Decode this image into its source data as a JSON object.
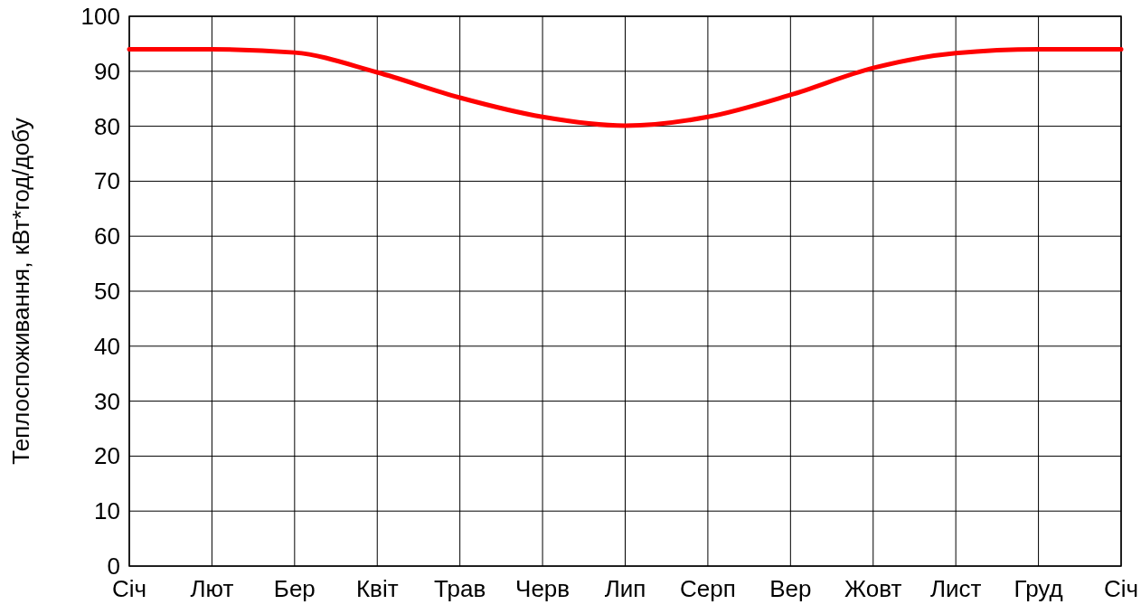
{
  "chart_data": {
    "type": "line",
    "ylabel": "Теплоспоживання, кВт*год/добу",
    "categories": [
      "Січ",
      "Лют",
      "Бер",
      "Квіт",
      "Трав",
      "Черв",
      "Лип",
      "Серп",
      "Вер",
      "Жовт",
      "Лист",
      "Груд",
      "Січ"
    ],
    "series": [
      {
        "color": "#ff0000",
        "values": [
          94,
          94,
          93.4,
          89.8,
          85.2,
          81.7,
          80.1,
          81.7,
          85.7,
          90.6,
          93.3,
          94,
          94
        ]
      }
    ],
    "ylim": [
      0,
      100
    ],
    "yticks": [
      0,
      10,
      20,
      30,
      40,
      50,
      60,
      70,
      80,
      90,
      100
    ],
    "grid": true,
    "marker": "none",
    "line_style": "solid"
  }
}
